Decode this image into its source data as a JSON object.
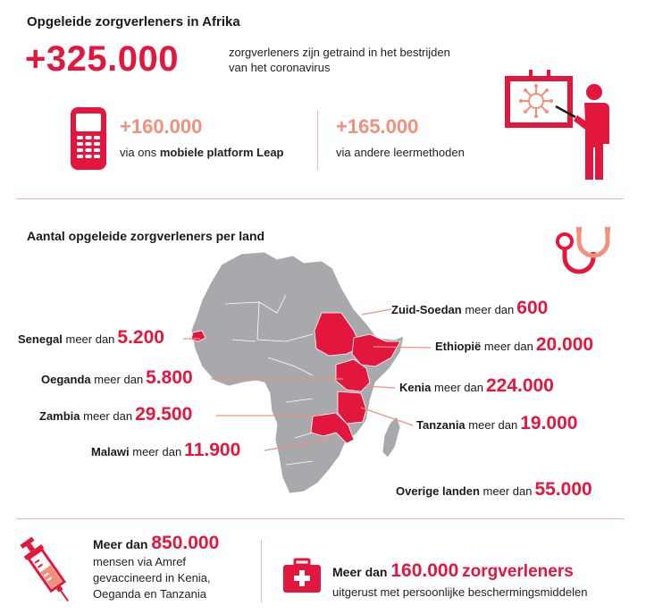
{
  "top": {
    "title": "Opgeleide zorgverleners in Afrika",
    "total": "+325.000",
    "total_desc_line1": "zorgverleners zijn getraind in het bestrijden",
    "total_desc_line2": "van het coronavirus",
    "leap_number": "+160.000",
    "leap_prefix": "via ons ",
    "leap_bold": "mobiele platform Leap",
    "other_number": "+165.000",
    "other_desc": "via andere leermethoden"
  },
  "map_section": {
    "title": "Aantal opgeleide zorgverleners per land",
    "countries": [
      {
        "name": "Zuid-Soedan",
        "mid": "meer dan",
        "value": "600"
      },
      {
        "name": "Ethiopië",
        "mid": "meer dan",
        "value": "20.000"
      },
      {
        "name": "Kenia",
        "mid": "meer dan",
        "value": "224.000"
      },
      {
        "name": "Tanzania",
        "mid": "meer dan",
        "value": "19.000"
      },
      {
        "name": "Overige landen",
        "mid": "meer dan",
        "value": "55.000"
      },
      {
        "name": "Senegal",
        "mid": "meer dan",
        "value": "5.200"
      },
      {
        "name": "Oeganda",
        "mid": "meer dan",
        "value": "5.800"
      },
      {
        "name": "Zambia",
        "mid": "meer dan",
        "value": "29.500"
      },
      {
        "name": "Malawi",
        "mid": "meer dan",
        "value": "11.900"
      }
    ],
    "colors": {
      "highlight": "#e3173e",
      "land": "#a7a9ac",
      "accent": "#f0907d"
    }
  },
  "bottom": {
    "left_prefix": "Meer dan",
    "left_number": "850.000",
    "left_line1": "mensen via Amref",
    "left_line2": "gevaccineerd in Kenia,",
    "left_line3": "Oeganda en Tanzania",
    "right_prefix": "Meer dan",
    "right_number": "160.000",
    "right_suffix": "zorgverleners",
    "right_line": "uitgerust met persoonlijke beschermingsmiddelen"
  },
  "icons": [
    "mobile-phone-icon",
    "presenter-virus-icon",
    "stethoscope-icon",
    "syringe-icon",
    "first-aid-kit-icon"
  ]
}
